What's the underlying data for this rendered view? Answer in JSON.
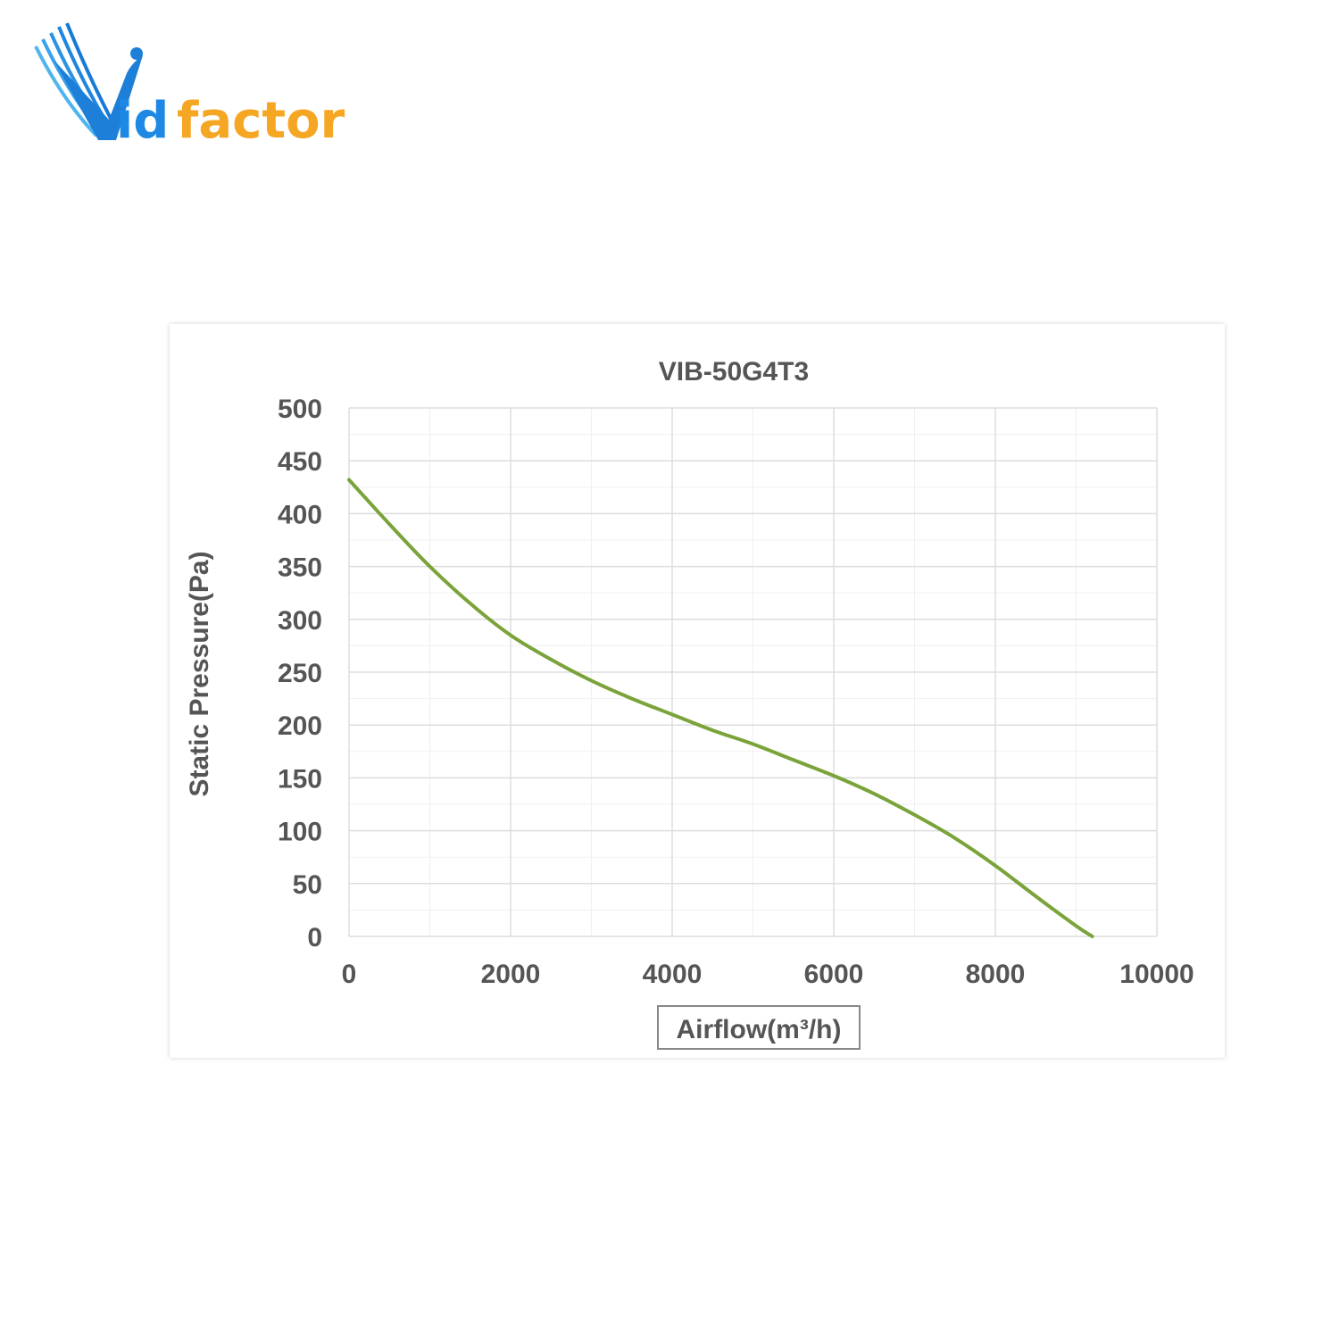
{
  "brand": {
    "name": "Vidfactor",
    "logo_text_prefix": "id",
    "logo_text_suffix": "factor",
    "color_blue": "#1e88e5",
    "color_orange": "#f5a623"
  },
  "chart_data": {
    "type": "line",
    "title": "VIB-50G4T3",
    "xlabel": "Airflow(m³/h)",
    "ylabel": "Static Pressure(Pa)",
    "xlim": [
      0,
      10000
    ],
    "ylim": [
      0,
      500
    ],
    "x_ticks": [
      0,
      2000,
      4000,
      6000,
      8000,
      10000
    ],
    "y_ticks": [
      0,
      50,
      100,
      150,
      200,
      250,
      300,
      350,
      400,
      450,
      500
    ],
    "grid": true,
    "legend": "none",
    "line_color": "#7aa33a",
    "series": [
      {
        "x": [
          0,
          500,
          1000,
          1500,
          2000,
          2500,
          3000,
          3500,
          4000,
          4500,
          5000,
          5500,
          6000,
          6500,
          7000,
          7500,
          8000,
          8500,
          9000,
          9200
        ],
        "y": [
          432,
          390,
          350,
          315,
          285,
          262,
          242,
          225,
          210,
          195,
          182,
          167,
          152,
          135,
          115,
          93,
          67,
          38,
          10,
          0
        ]
      }
    ]
  }
}
